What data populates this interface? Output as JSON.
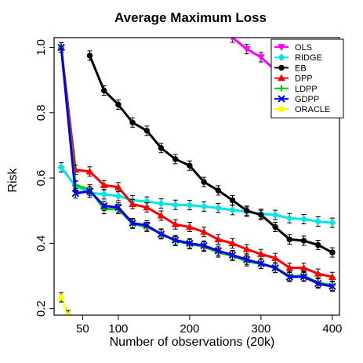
{
  "chart_data": {
    "type": "line",
    "title": "Average Maximum Loss",
    "xlabel": "Number of observations (20k)",
    "ylabel": "Risk",
    "xlim": [
      10,
      410
    ],
    "ylim": [
      0.18,
      1.03
    ],
    "xticks": [
      50,
      100,
      200,
      300,
      400
    ],
    "yticks": [
      0.2,
      0.4,
      0.6,
      0.8,
      1.0
    ],
    "yticklabels": [
      "0.2",
      "0.4",
      "0.6",
      "0.8",
      "1.0"
    ],
    "legend_position": "top-right",
    "grid": false,
    "series": [
      {
        "name": "OLS",
        "color": "#ff00ff",
        "marker": "triangle-down",
        "x": [
          260,
          280,
          300,
          320
        ],
        "y": [
          1.03,
          0.995,
          0.97,
          0.93
        ]
      },
      {
        "name": "RIDGE",
        "color": "#00e5e5",
        "marker": "diamond",
        "x": [
          20,
          40,
          60,
          80,
          100,
          120,
          140,
          160,
          180,
          200,
          220,
          240,
          260,
          280,
          300,
          320,
          340,
          360,
          380,
          400
        ],
        "y": [
          0.633,
          0.575,
          0.555,
          0.55,
          0.545,
          0.532,
          0.528,
          0.522,
          0.518,
          0.517,
          0.513,
          0.508,
          0.502,
          0.497,
          0.49,
          0.487,
          0.477,
          0.474,
          0.467,
          0.463
        ]
      },
      {
        "name": "EB",
        "color": "#000000",
        "marker": "circle",
        "x": [
          60,
          80,
          100,
          120,
          140,
          160,
          180,
          200,
          220,
          240,
          260,
          280,
          300,
          320,
          340,
          360,
          380,
          400
        ],
        "y": [
          0.975,
          0.868,
          0.825,
          0.77,
          0.745,
          0.692,
          0.658,
          0.638,
          0.588,
          0.562,
          0.532,
          0.5,
          0.487,
          0.45,
          0.412,
          0.408,
          0.395,
          0.372
        ]
      },
      {
        "name": "DPP",
        "color": "#ff0000",
        "marker": "triangle-up",
        "x": [
          20,
          40,
          60,
          80,
          100,
          120,
          140,
          160,
          180,
          200,
          220,
          240,
          260,
          280,
          300,
          320,
          340,
          360,
          380,
          400
        ],
        "y": [
          1.0,
          0.625,
          0.62,
          0.578,
          0.572,
          0.52,
          0.51,
          0.485,
          0.458,
          0.45,
          0.435,
          0.412,
          0.4,
          0.382,
          0.367,
          0.355,
          0.325,
          0.325,
          0.307,
          0.297
        ]
      },
      {
        "name": "LDPP",
        "color": "#00cc00",
        "marker": "plus",
        "x": [
          20,
          40,
          60,
          80,
          100,
          120,
          140,
          160,
          180,
          200,
          220,
          240,
          260,
          280,
          300,
          320,
          340,
          360,
          380,
          400
        ],
        "y": [
          1.0,
          0.578,
          0.565,
          0.505,
          0.505,
          0.46,
          0.45,
          0.43,
          0.407,
          0.398,
          0.39,
          0.372,
          0.362,
          0.345,
          0.337,
          0.325,
          0.3,
          0.3,
          0.28,
          0.27
        ]
      },
      {
        "name": "GDPP",
        "color": "#0000ee",
        "marker": "cross",
        "x": [
          20,
          40,
          60,
          80,
          100,
          120,
          140,
          160,
          180,
          200,
          220,
          240,
          260,
          280,
          300,
          320,
          340,
          360,
          380,
          400
        ],
        "y": [
          1.0,
          0.553,
          0.56,
          0.515,
          0.51,
          0.462,
          0.455,
          0.428,
          0.41,
          0.4,
          0.393,
          0.377,
          0.364,
          0.35,
          0.338,
          0.325,
          0.297,
          0.298,
          0.277,
          0.268
        ]
      },
      {
        "name": "ORACLE",
        "color": "#ffff00",
        "marker": "square",
        "x": [
          20,
          30
        ],
        "y": [
          0.235,
          0.18
        ]
      }
    ]
  }
}
